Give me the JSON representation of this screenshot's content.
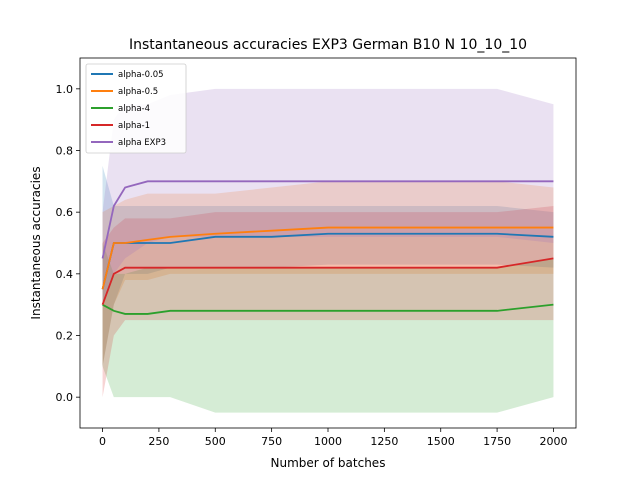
{
  "chart_data": {
    "type": "line",
    "title": "Instantaneous accuracies EXP3 German B10 N 10_10_10",
    "xlabel": "Number of batches",
    "ylabel": "Instantaneous accuracies",
    "xlim": [
      -100,
      2100
    ],
    "ylim": [
      -0.1,
      1.1
    ],
    "xticks": [
      0,
      250,
      500,
      750,
      1000,
      1250,
      1500,
      1750,
      2000
    ],
    "yticks": [
      0.0,
      0.2,
      0.4,
      0.6,
      0.8,
      1.0
    ],
    "grid": false,
    "legend_position": "top-left",
    "x": [
      0,
      50,
      100,
      200,
      300,
      500,
      750,
      1000,
      1250,
      1500,
      1750,
      2000
    ],
    "series": [
      {
        "name": "alpha-0.05",
        "color": "#1f77b4",
        "values": [
          0.35,
          0.5,
          0.5,
          0.5,
          0.5,
          0.52,
          0.52,
          0.53,
          0.53,
          0.53,
          0.53,
          0.52
        ],
        "band_low": [
          0.1,
          0.3,
          0.4,
          0.4,
          0.42,
          0.42,
          0.42,
          0.43,
          0.43,
          0.43,
          0.43,
          0.42
        ],
        "band_high": [
          0.75,
          0.62,
          0.62,
          0.62,
          0.62,
          0.62,
          0.62,
          0.62,
          0.62,
          0.62,
          0.62,
          0.6
        ]
      },
      {
        "name": "alpha-0.5",
        "color": "#ff7f0e",
        "values": [
          0.35,
          0.5,
          0.5,
          0.51,
          0.52,
          0.53,
          0.54,
          0.55,
          0.55,
          0.55,
          0.55,
          0.55
        ],
        "band_low": [
          0.1,
          0.3,
          0.38,
          0.38,
          0.4,
          0.4,
          0.4,
          0.4,
          0.4,
          0.4,
          0.4,
          0.4
        ],
        "band_high": [
          0.6,
          0.62,
          0.64,
          0.66,
          0.66,
          0.66,
          0.68,
          0.7,
          0.7,
          0.7,
          0.7,
          0.68
        ]
      },
      {
        "name": "alpha-4",
        "color": "#2ca02c",
        "values": [
          0.3,
          0.28,
          0.27,
          0.27,
          0.28,
          0.28,
          0.28,
          0.28,
          0.28,
          0.28,
          0.28,
          0.3
        ],
        "band_low": [
          0.1,
          0.0,
          0.0,
          0.0,
          0.0,
          -0.05,
          -0.05,
          -0.05,
          -0.05,
          -0.05,
          -0.05,
          0.0
        ],
        "band_high": [
          0.5,
          0.4,
          0.4,
          0.42,
          0.42,
          0.42,
          0.42,
          0.42,
          0.42,
          0.42,
          0.42,
          0.45
        ]
      },
      {
        "name": "alpha-1",
        "color": "#d62728",
        "values": [
          0.3,
          0.4,
          0.42,
          0.42,
          0.42,
          0.42,
          0.42,
          0.42,
          0.42,
          0.42,
          0.42,
          0.45
        ],
        "band_low": [
          0.0,
          0.2,
          0.25,
          0.25,
          0.25,
          0.25,
          0.25,
          0.25,
          0.25,
          0.25,
          0.25,
          0.25
        ],
        "band_high": [
          0.5,
          0.55,
          0.58,
          0.58,
          0.58,
          0.6,
          0.6,
          0.6,
          0.6,
          0.6,
          0.6,
          0.62
        ]
      },
      {
        "name": "alpha EXP3",
        "color": "#9467bd",
        "values": [
          0.45,
          0.62,
          0.68,
          0.7,
          0.7,
          0.7,
          0.7,
          0.7,
          0.7,
          0.7,
          0.7,
          0.7
        ],
        "band_low": [
          0.3,
          0.4,
          0.45,
          0.5,
          0.52,
          0.52,
          0.52,
          0.52,
          0.52,
          0.52,
          0.52,
          0.5
        ],
        "band_high": [
          0.6,
          0.9,
          0.95,
          0.95,
          0.98,
          1.0,
          1.0,
          1.0,
          1.0,
          1.0,
          1.0,
          0.95
        ]
      }
    ]
  }
}
